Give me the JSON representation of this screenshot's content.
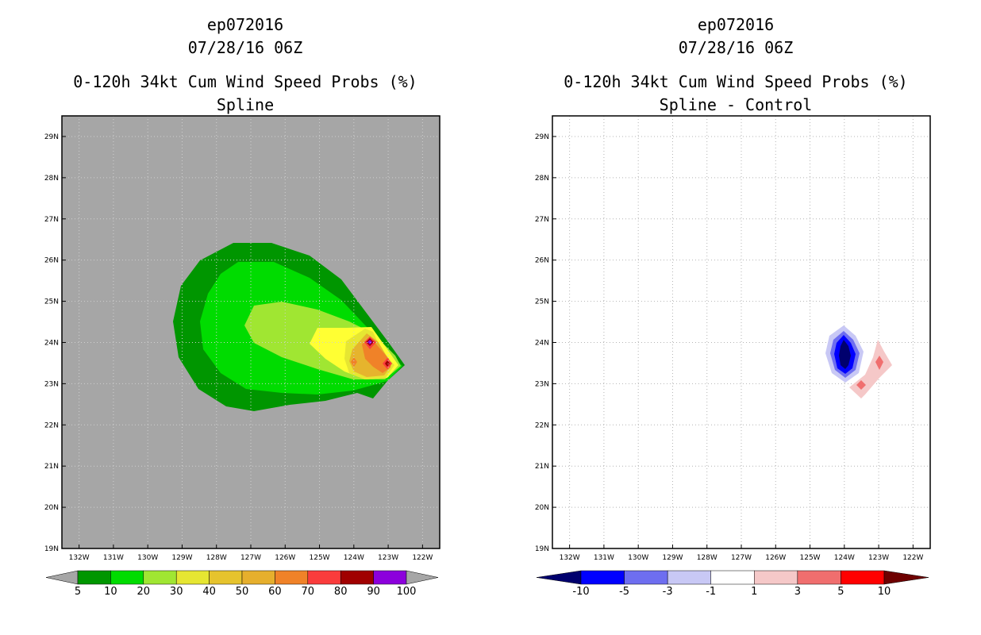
{
  "chart_data": [
    {
      "type": "heatmap",
      "panel": "left",
      "title_lines": [
        "ep072016",
        "07/28/16 06Z",
        "0-120h 34kt Cum Wind Speed Probs (%)",
        "Spline"
      ],
      "x_ticks": [
        "132W",
        "131W",
        "130W",
        "129W",
        "128W",
        "127W",
        "126W",
        "125W",
        "124W",
        "123W",
        "122W"
      ],
      "y_ticks": [
        "29N",
        "28N",
        "27N",
        "26N",
        "25N",
        "24N",
        "23N",
        "22N",
        "21N",
        "20N",
        "19N"
      ],
      "xlim": [
        "132.5W",
        "121.5W"
      ],
      "ylim": [
        "19N",
        "29.5N"
      ],
      "grid": true,
      "background_color": "#a6a6a6",
      "contour_levels": [
        5,
        10,
        20,
        30,
        40,
        50,
        60,
        70,
        80,
        90,
        100
      ],
      "colorbar": {
        "labels": [
          "5",
          "10",
          "20",
          "30",
          "40",
          "50",
          "60",
          "70",
          "80",
          "90",
          "100"
        ],
        "colors": [
          "#a6a6a6",
          "#009600",
          "#00dc00",
          "#a0e632",
          "#e6e632",
          "#e6c32d",
          "#e6af2d",
          "#f08228",
          "#fa3c3c",
          "#a00000",
          "#8c00dc",
          "#a6a6a6"
        ]
      },
      "max_probability_centers": [
        {
          "lat": 24.0,
          "lon": -123.5,
          "value": "90-100"
        },
        {
          "lat": 23.5,
          "lon": -122.9,
          "value": "90-100"
        }
      ]
    },
    {
      "type": "heatmap",
      "panel": "right",
      "title_lines": [
        "ep072016",
        "07/28/16 06Z",
        "0-120h 34kt Cum Wind Speed Probs (%)",
        "Spline - Control"
      ],
      "x_ticks": [
        "132W",
        "131W",
        "130W",
        "129W",
        "128W",
        "127W",
        "126W",
        "125W",
        "124W",
        "123W",
        "122W"
      ],
      "y_ticks": [
        "29N",
        "28N",
        "27N",
        "26N",
        "25N",
        "24N",
        "23N",
        "22N",
        "21N",
        "20N",
        "19N"
      ],
      "xlim": [
        "132.5W",
        "121.5W"
      ],
      "ylim": [
        "19N",
        "29.5N"
      ],
      "grid": true,
      "background_color": "#ffffff",
      "contour_levels": [
        -10,
        -5,
        -3,
        -1,
        1,
        3,
        5,
        10
      ],
      "colorbar": {
        "labels": [
          "-10",
          "-5",
          "-3",
          "-1",
          "1",
          "3",
          "5",
          "10"
        ],
        "colors": [
          "#00006e",
          "#0000ff",
          "#6e6ef0",
          "#c8c8f5",
          "#ffffff",
          "#f5c8c8",
          "#f06e6e",
          "#ff0000",
          "#6e0000"
        ]
      },
      "difference_centers": [
        {
          "lat": 23.8,
          "lon": -124.0,
          "value": "< -10"
        },
        {
          "lat": 23.5,
          "lon": -123.0,
          "value": "3-5"
        },
        {
          "lat": 23.0,
          "lon": -123.5,
          "value": "3-5"
        }
      ]
    }
  ]
}
